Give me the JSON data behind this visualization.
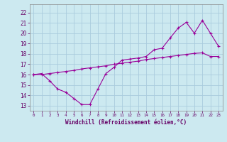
{
  "xlabel": "Windchill (Refroidissement éolien,°C)",
  "background_color": "#cce9f0",
  "grid_color": "#aaccdd",
  "line_color": "#990099",
  "xlim": [
    -0.5,
    23.5
  ],
  "ylim": [
    12.5,
    22.8
  ],
  "yticks": [
    13,
    14,
    15,
    16,
    17,
    18,
    19,
    20,
    21,
    22
  ],
  "xticks": [
    0,
    1,
    2,
    3,
    4,
    5,
    6,
    7,
    8,
    9,
    10,
    11,
    12,
    13,
    14,
    15,
    16,
    17,
    18,
    19,
    20,
    21,
    22,
    23
  ],
  "curve1_x": [
    0,
    1,
    2,
    3,
    4,
    5,
    6,
    7,
    8,
    9,
    10,
    11,
    12,
    13,
    14,
    15,
    16,
    17,
    18,
    19,
    20,
    21,
    22,
    23
  ],
  "curve1_y": [
    16.0,
    16.1,
    15.4,
    14.6,
    14.3,
    13.7,
    13.1,
    13.1,
    14.6,
    16.1,
    16.7,
    17.4,
    17.5,
    17.6,
    17.75,
    18.4,
    18.55,
    19.55,
    20.5,
    21.05,
    20.0,
    21.25,
    20.0,
    18.75
  ],
  "curve2_x": [
    0,
    1,
    2,
    3,
    4,
    5,
    6,
    7,
    8,
    9,
    10,
    11,
    12,
    13,
    14,
    15,
    16,
    17,
    18,
    19,
    20,
    21,
    22,
    23
  ],
  "curve2_y": [
    16.0,
    16.0,
    16.1,
    16.2,
    16.3,
    16.4,
    16.55,
    16.65,
    16.75,
    16.85,
    17.0,
    17.1,
    17.2,
    17.3,
    17.45,
    17.55,
    17.65,
    17.75,
    17.85,
    17.95,
    18.05,
    18.1,
    17.75,
    17.75
  ],
  "tick_fontsize": 5.0,
  "xlabel_fontsize": 5.5
}
